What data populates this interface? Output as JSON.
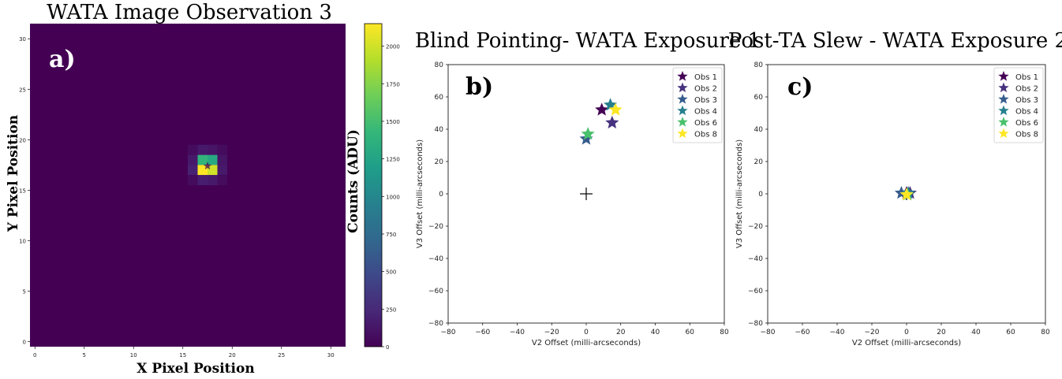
{
  "colors": {
    "viridis": [
      "#440154",
      "#482878",
      "#3e4989",
      "#31688e",
      "#26828e",
      "#1f9e89",
      "#35b779",
      "#6ece58",
      "#b5de2b",
      "#fde725"
    ],
    "crosshair": "#000000",
    "axis": "#000000"
  },
  "chart_data": [
    {
      "type": "heatmap",
      "panel_label": "a)",
      "title": "WATA Image Observation 3",
      "xlabel": "X Pixel Position",
      "ylabel": "Y Pixel Position",
      "xlim": [
        -0.5,
        31.5
      ],
      "ylim": [
        -0.5,
        31.5
      ],
      "xticks": [
        0,
        5,
        10,
        15,
        20,
        25,
        30
      ],
      "yticks": [
        0,
        5,
        10,
        15,
        20,
        25,
        30
      ],
      "background_value": 0,
      "cells": [
        {
          "x": 17,
          "y": 18,
          "value": 1400
        },
        {
          "x": 18,
          "y": 18,
          "value": 1300
        },
        {
          "x": 17,
          "y": 17,
          "value": 2150
        },
        {
          "x": 18,
          "y": 17,
          "value": 2000
        },
        {
          "x": 16,
          "y": 18,
          "value": 150
        },
        {
          "x": 19,
          "y": 18,
          "value": 120
        },
        {
          "x": 16,
          "y": 17,
          "value": 200
        },
        {
          "x": 19,
          "y": 17,
          "value": 150
        },
        {
          "x": 17,
          "y": 19,
          "value": 150
        },
        {
          "x": 18,
          "y": 19,
          "value": 120
        },
        {
          "x": 17,
          "y": 16,
          "value": 180
        },
        {
          "x": 18,
          "y": 16,
          "value": 150
        },
        {
          "x": 16,
          "y": 19,
          "value": 60
        },
        {
          "x": 19,
          "y": 19,
          "value": 60
        },
        {
          "x": 16,
          "y": 16,
          "value": 60
        },
        {
          "x": 19,
          "y": 16,
          "value": 60
        }
      ],
      "marker": {
        "x": 17.5,
        "y": 17.4,
        "symbol": "star"
      },
      "colorbar": {
        "label": "Counts (ADU)",
        "min": 0,
        "max": 2150,
        "ticks": [
          0,
          250,
          500,
          750,
          1000,
          1250,
          1500,
          1750,
          2000
        ]
      }
    },
    {
      "type": "scatter",
      "panel_label": "b)",
      "title": "Blind Pointing- WATA Exposure 1",
      "xlabel": "V2 Offset (milli-arcseconds)",
      "ylabel": "V3 Offset (milli-arcseconds)",
      "xlim": [
        -80,
        80
      ],
      "ylim": [
        -80,
        80
      ],
      "xticks": [
        "−80",
        "−60",
        "−40",
        "−20",
        "0",
        "20",
        "40",
        "60",
        "80"
      ],
      "yticks": [
        "80",
        "60",
        "40",
        "20",
        "0",
        "−20",
        "−40",
        "−60",
        "−80"
      ],
      "legend_position": "top-right",
      "crosshair": {
        "x": 0,
        "y": 0
      },
      "series": [
        {
          "name": "Obs 1",
          "color": "#440154",
          "x": 9,
          "y": 52
        },
        {
          "name": "Obs 2",
          "color": "#46327e",
          "x": 15,
          "y": 44
        },
        {
          "name": "Obs 3",
          "color": "#365c8d",
          "x": 0,
          "y": 34
        },
        {
          "name": "Obs 4",
          "color": "#277f8e",
          "x": 14,
          "y": 55
        },
        {
          "name": "Obs 6",
          "color": "#4ac16d",
          "x": 1,
          "y": 37
        },
        {
          "name": "Obs 8",
          "color": "#fde725",
          "x": 17,
          "y": 52
        }
      ]
    },
    {
      "type": "scatter",
      "panel_label": "c)",
      "title": "Post-TA Slew - WATA Exposure 2",
      "xlabel": "V2 Offset (milli-arcseconds)",
      "ylabel": "V3 Offset (milli-arcseconds)",
      "xlim": [
        -80,
        80
      ],
      "ylim": [
        -80,
        80
      ],
      "xticks": [
        "−80",
        "−60",
        "−40",
        "−20",
        "0",
        "20",
        "40",
        "60",
        "80"
      ],
      "yticks": [
        "80",
        "60",
        "40",
        "20",
        "0",
        "−20",
        "−40",
        "−60",
        "−80"
      ],
      "legend_position": "top-right",
      "crosshair": {
        "x": 0,
        "y": 0
      },
      "series": [
        {
          "name": "Obs 1",
          "color": "#440154",
          "x": 0,
          "y": 0.5
        },
        {
          "name": "Obs 2",
          "color": "#46327e",
          "x": 2,
          "y": 0.5
        },
        {
          "name": "Obs 3",
          "color": "#365c8d",
          "x": -3,
          "y": 0.5
        },
        {
          "name": "Obs 4",
          "color": "#277f8e",
          "x": 1,
          "y": 0.5
        },
        {
          "name": "Obs 6",
          "color": "#4ac16d",
          "x": 0.5,
          "y": -0.5
        },
        {
          "name": "Obs 8",
          "color": "#fde725",
          "x": 0,
          "y": -0.5
        }
      ]
    }
  ]
}
